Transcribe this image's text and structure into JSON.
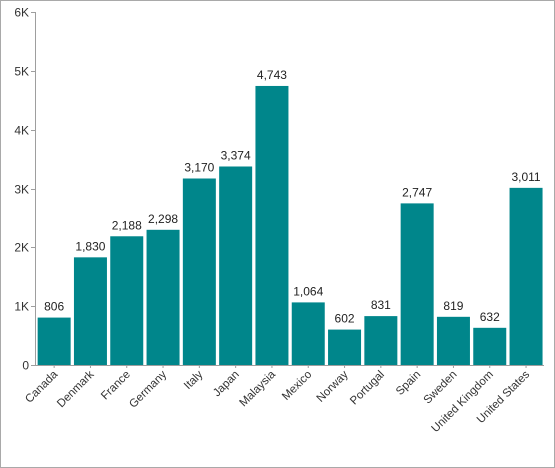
{
  "chart_data": {
    "type": "bar",
    "title": "",
    "xlabel": "",
    "ylabel": "",
    "categories": [
      "Canada",
      "Denmark",
      "France",
      "Germany",
      "Italy",
      "Japan",
      "Malaysia",
      "Mexico",
      "Norway",
      "Portugal",
      "Spain",
      "Sweden",
      "United Kingdom",
      "United States"
    ],
    "values": [
      806,
      1830,
      2188,
      2298,
      3170,
      3374,
      4743,
      1064,
      602,
      831,
      2747,
      819,
      632,
      3011
    ],
    "data_labels": [
      "806",
      "1,830",
      "2,188",
      "2,298",
      "3,170",
      "3,374",
      "4,743",
      "1,064",
      "602",
      "831",
      "2,747",
      "819",
      "632",
      "3,011"
    ],
    "ylim": [
      0,
      6000
    ],
    "yticks": [
      0,
      1000,
      2000,
      3000,
      4000,
      5000,
      6000
    ],
    "ytick_labels": [
      "0",
      "1K",
      "2K",
      "3K",
      "4K",
      "5K",
      "6K"
    ],
    "grid": false,
    "legend": "none",
    "bar_color": "#00868B"
  }
}
